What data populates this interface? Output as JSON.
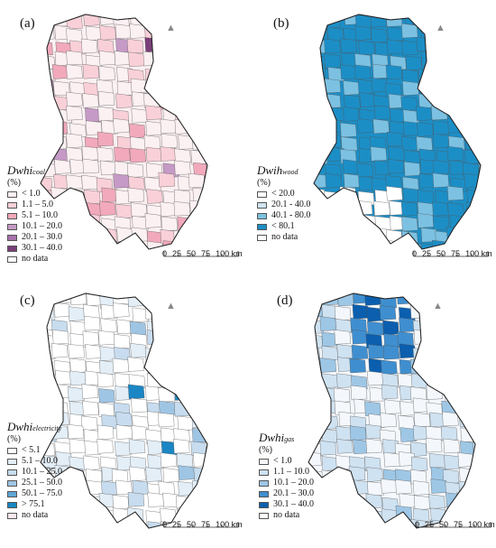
{
  "panels": [
    {
      "id": "a",
      "label": "(a)",
      "legend": {
        "symbol": "Dwhi",
        "subscript": "coal",
        "unit": "(%)",
        "classes": [
          {
            "label": "< 1.0",
            "color": "#fbf0f2"
          },
          {
            "label": "1.1 – 5.0",
            "color": "#f9d0d8"
          },
          {
            "label": "5.1 – 10.0",
            "color": "#f1a9bb"
          },
          {
            "label": "10.1 – 20.0",
            "color": "#c59ac6"
          },
          {
            "label": "20.1 – 30.0",
            "color": "#a872ab"
          },
          {
            "label": "30.1 – 40.0",
            "color": "#7a3f78"
          },
          {
            "label": "no data",
            "color": "#ffffff"
          }
        ]
      },
      "scale": {
        "ticks": [
          "0",
          "25",
          "50",
          "75",
          "100 km"
        ]
      }
    },
    {
      "id": "b",
      "label": "(b)",
      "legend": {
        "symbol": "Dwih",
        "subscript": "wood",
        "unit": "(%)",
        "classes": [
          {
            "label": "< 20.0",
            "color": "#ffffff"
          },
          {
            "label": "20.1 - 40.0",
            "color": "#cfe5f2"
          },
          {
            "label": "40.1 - 80.0",
            "color": "#7cc1e2"
          },
          {
            "label": "< 80.1",
            "color": "#1c8ec6"
          },
          {
            "label": "no data",
            "color": "#ffffff"
          }
        ]
      },
      "scale": {
        "ticks": [
          "0",
          "25",
          "50",
          "75",
          "100 km"
        ]
      }
    },
    {
      "id": "c",
      "label": "(c)",
      "legend": {
        "symbol": "Dwhi",
        "subscript": "electricity",
        "unit": "(%)",
        "classes": [
          {
            "label": "< 5.1",
            "color": "#ffffff"
          },
          {
            "label": "5.1 – 10.0",
            "color": "#e3eef7"
          },
          {
            "label": "10.1 – 25.0",
            "color": "#c7dcee"
          },
          {
            "label": "25.1 – 50.0",
            "color": "#9fc5e4"
          },
          {
            "label": "50.1 – 75.0",
            "color": "#5fa6d4"
          },
          {
            "label": "> 75.1",
            "color": "#1a86c4"
          },
          {
            "label": "no data",
            "color": "#fbe9ee"
          }
        ]
      },
      "scale": {
        "ticks": [
          "0",
          "25",
          "50",
          "75",
          "100 km"
        ]
      }
    },
    {
      "id": "d",
      "label": "(d)",
      "legend": {
        "symbol": "Dwhi",
        "subscript": "gas",
        "unit": "(%)",
        "classes": [
          {
            "label": "< 1.0",
            "color": "#f4f7fb"
          },
          {
            "label": "1.1 – 10.0",
            "color": "#cfe2f1"
          },
          {
            "label": "10.1 – 20.0",
            "color": "#9ec7e6"
          },
          {
            "label": "20.1 – 30.0",
            "color": "#3f8fd0"
          },
          {
            "label": "30.1 – 40.0",
            "color": "#0b5fae"
          },
          {
            "label": "no data",
            "color": "#ffffff"
          }
        ]
      },
      "scale": {
        "ticks": [
          "0",
          "25",
          "50",
          "75",
          "100 km"
        ]
      }
    }
  ]
}
